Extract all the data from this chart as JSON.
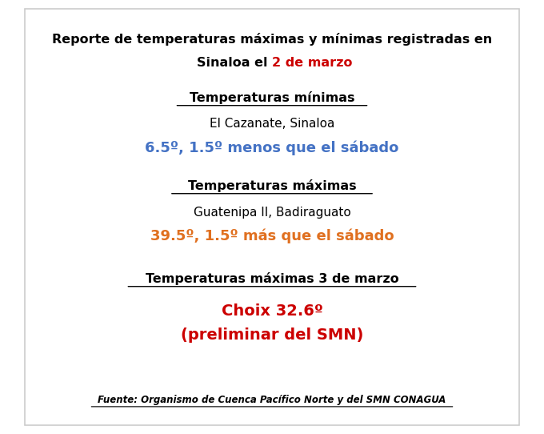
{
  "bg_color": "#ffffff",
  "border_color": "#cccccc",
  "title_line1": "Reporte de temperaturas máximas y mínimas registradas en",
  "title_line2_black": "Sinaloa el ",
  "title_line2_red": "2 de marzo",
  "title_color": "#000000",
  "title_red_color": "#cc0000",
  "section1_header": "Temperaturas mínimas",
  "section1_location": "El Cazanate, Sinaloa",
  "section1_value": "6.5º, 1.5º menos que el sábado",
  "section1_value_color": "#4472c4",
  "section2_header": "Temperaturas máximas",
  "section2_location": "Guatenipa II, Badiraguato",
  "section2_value": "39.5º, 1.5º más que el sábado",
  "section2_value_color": "#e07020",
  "section3_header": "Temperaturas máximas 3 de marzo",
  "section3_value1": "Choix 32.6º",
  "section3_value2": "(preliminar del SMN)",
  "section3_value_color": "#cc0000",
  "footer": "Fuente: Organismo de Cuenca Pacífico Norte y del SMN CONAGUA",
  "footer_color": "#000000"
}
